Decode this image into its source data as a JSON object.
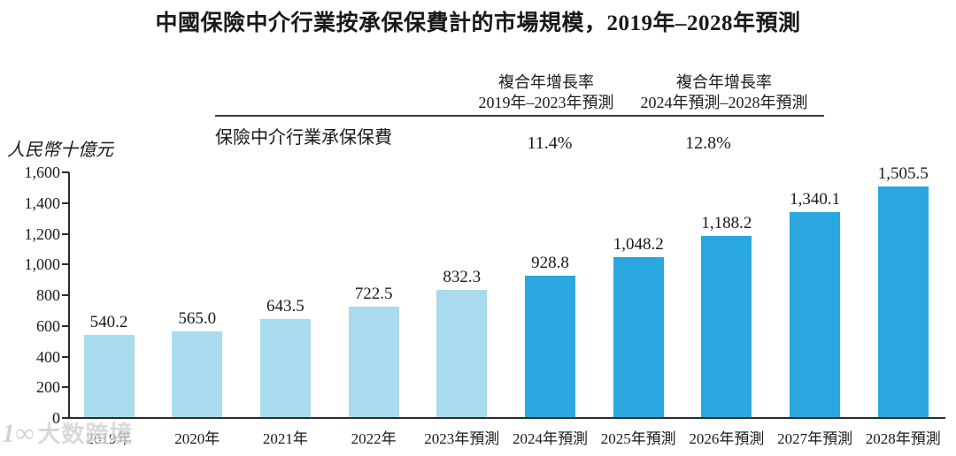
{
  "title": "中國保險中介行業按承保保費計的市場規模，2019年–2028年預測",
  "cagr_header": {
    "col1_line1": "複合年增長率",
    "col1_line2": "2019年–2023年預測",
    "col2_line1": "複合年增長率",
    "col2_line2": "2024年預測–2028年預測"
  },
  "metric_row": {
    "label": "保險中介行業承保保費",
    "cagr_2019_2023": "11.4%",
    "cagr_2024_2028": "12.8%"
  },
  "watermark": {
    "logo": "1∞",
    "text": "大数跨境"
  },
  "chart_data": {
    "type": "bar",
    "title": "中國保險中介行業按承保保費計的市場規模，2019年–2028年預測",
    "xlabel": "",
    "ylabel": "人民幣十億元",
    "ylim": [
      0,
      1600
    ],
    "ytick_step": 200,
    "ytick_labels": [
      "0",
      "200",
      "400",
      "600",
      "800",
      "1,000",
      "1,200",
      "1,400",
      "1,600"
    ],
    "grid": false,
    "legend_position": "none",
    "categories": [
      "2019年",
      "2020年",
      "2021年",
      "2022年",
      "2023年預測",
      "2024年預測",
      "2025年預測",
      "2026年預測",
      "2027年預測",
      "2028年預測"
    ],
    "values": [
      540.2,
      565.0,
      643.5,
      722.5,
      832.3,
      928.8,
      1048.2,
      1188.2,
      1340.1,
      1505.5
    ],
    "value_labels": [
      "540.2",
      "565.0",
      "643.5",
      "722.5",
      "832.3",
      "928.8",
      "1,048.2",
      "1,188.2",
      "1,340.1",
      "1,505.5"
    ],
    "bar_shades": [
      "light",
      "light",
      "light",
      "light",
      "light",
      "dark",
      "dark",
      "dark",
      "dark",
      "dark"
    ],
    "colors": {
      "light": "#A9DBEF",
      "dark": "#2AA7DE"
    },
    "annotations": [
      {
        "label": "複合年增長率 2019年–2023年預測",
        "value": "11.4%"
      },
      {
        "label": "複合年增長率 2024年預測–2028年預測",
        "value": "12.8%"
      }
    ]
  }
}
